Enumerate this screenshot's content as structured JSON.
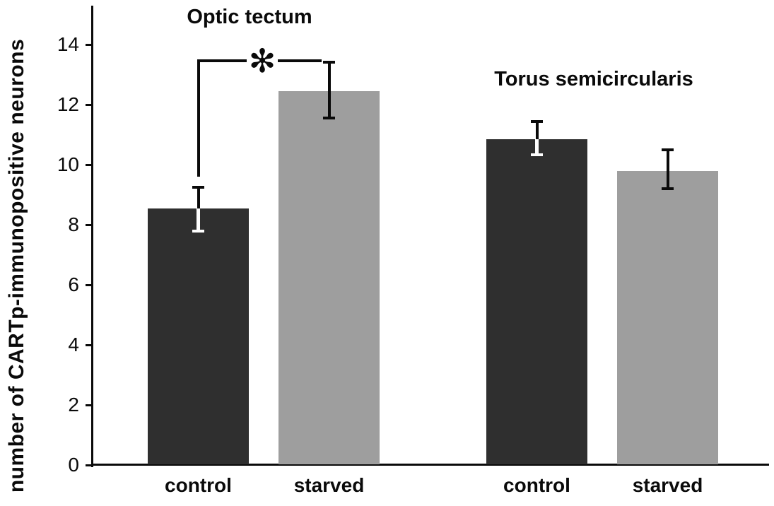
{
  "chart_data": {
    "type": "bar",
    "title": "",
    "xlabel": "",
    "ylabel": "number of CARTp-immunopositive neurons",
    "ylim": [
      0,
      15.3
    ],
    "yticks": [
      0,
      2,
      4,
      6,
      8,
      10,
      12,
      14
    ],
    "grid": false,
    "legend": "none",
    "bar_colors": {
      "control": "#2f2f2f",
      "starved": "#9e9e9e"
    },
    "error_bar_color_outside": "#0a0a0a",
    "error_bar_color_inside_dark_bar": "#ffffff",
    "groups": [
      {
        "title": "Optic tectum",
        "significance_marker": "✻",
        "significance_between": [
          "control",
          "starved"
        ],
        "bars": [
          {
            "label": "control",
            "value": 8.55,
            "err_up": 0.75,
            "err_down": 0.8
          },
          {
            "label": "starved",
            "value": 12.45,
            "err_up": 1.0,
            "err_down": 0.95
          }
        ]
      },
      {
        "title": "Torus semicircularis",
        "bars": [
          {
            "label": "control",
            "value": 10.85,
            "err_up": 0.63,
            "err_down": 0.57
          },
          {
            "label": "starved",
            "value": 9.8,
            "err_up": 0.74,
            "err_down": 0.64
          }
        ]
      }
    ]
  }
}
